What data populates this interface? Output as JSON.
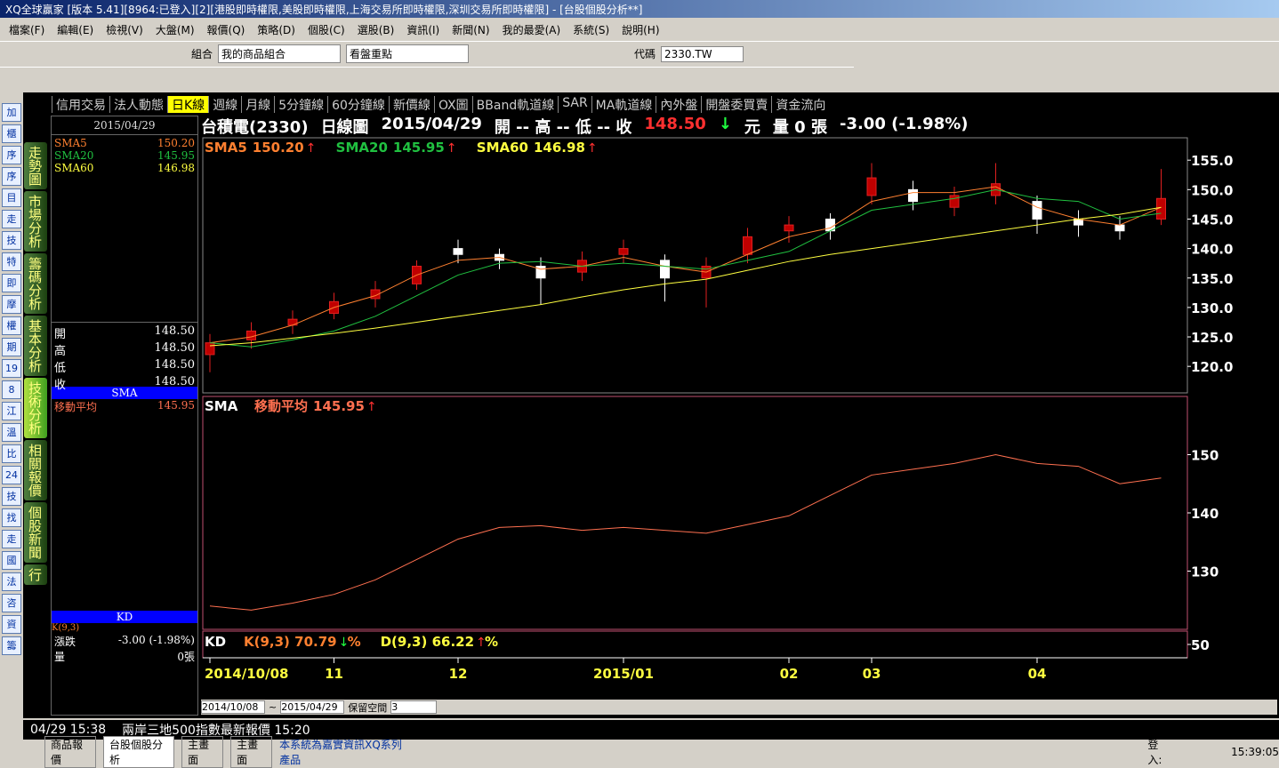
{
  "window": {
    "title": "XQ全球贏家 [版本 5.41][8964:已登入][2][港股即時權限,美股即時權限,上海交易所即時權限,深圳交易所即時權限] - [台股個股分析**]"
  },
  "menu": [
    "檔案(F)",
    "編輯(E)",
    "檢視(V)",
    "大盤(M)",
    "報價(Q)",
    "策略(D)",
    "個股(C)",
    "選股(B)",
    "資訊(I)",
    "新聞(N)",
    "我的最愛(A)",
    "系統(S)",
    "說明(H)"
  ],
  "toolbar": {
    "group_label": "組合",
    "group": "我的商品組合",
    "view": "看盤重點",
    "code_label": "代碼",
    "code": "2330.TW"
  },
  "side_icons": [
    "加",
    "櫃",
    "序",
    "序",
    "目",
    "走",
    "技",
    "特",
    "即",
    "摩",
    "權",
    "期",
    "19",
    "8",
    "江",
    "溫",
    "比",
    "24",
    "技",
    "找",
    "走",
    "國",
    "法",
    "咨",
    "資",
    "籌"
  ],
  "side_tabs": [
    "走勢圖",
    "市場分析",
    "籌碼分析",
    "基本分析",
    "技術分析",
    "相關報價",
    "個股新聞",
    "行"
  ],
  "tabs": [
    "信用交易",
    "法人動態",
    "日K線",
    "週線",
    "月線",
    "5分鐘線",
    "60分鐘線",
    "新價線",
    "OX圖",
    "BBand軌道線",
    "SAR",
    "MA軌道線",
    "內外盤",
    "開盤委買賣",
    "資金流向"
  ],
  "info": {
    "date": "2015/04/29",
    "sma_rows": [
      [
        "SMA5",
        "150.20"
      ],
      [
        "SMA20",
        "145.95"
      ],
      [
        "SMA60",
        "146.98"
      ]
    ],
    "ohlc": [
      [
        "開",
        "148.50"
      ],
      [
        "高",
        "148.50"
      ],
      [
        "低",
        "148.50"
      ],
      [
        "收",
        "148.50"
      ]
    ],
    "sma_title": "SMA",
    "sma_row": [
      "移動平均",
      "145.95"
    ],
    "kd_title": "KD",
    "kd_sub": "K(9,3)",
    "chg": [
      "漲跌",
      "-3.00 (-1.98%)"
    ],
    "vol": [
      "量",
      "0張"
    ]
  },
  "header": {
    "stock": "台積電(2330)",
    "period": "日線圖",
    "date": "2015/04/29",
    "ohlc": "開 --  高 --  低 --  收",
    "close": "148.50",
    "unit": "元",
    "volume": "量 0 張",
    "change": "-3.00 (-1.98%)"
  },
  "status": {
    "time": "04/29 15:38",
    "news": "兩岸三地500指數最新報價 15:20"
  },
  "bottom": {
    "from": "2014/10/08",
    "to": "2015/04/29",
    "label": "保留空間",
    "space": "3"
  },
  "taskbar": {
    "tabs": [
      "商品報價",
      "台股個股分析",
      "主畫面",
      "主畫面"
    ],
    "message": "本系統為嘉實資訊XQ系列產品",
    "login": "登入:",
    "clock": "15:39:05"
  },
  "chart_data": [
    {
      "type": "candlestick",
      "categories": [
        "2014/10/08",
        null,
        null,
        "11",
        null,
        null,
        "12",
        null,
        null,
        null,
        "2015/01",
        null,
        null,
        null,
        "02",
        null,
        "03",
        null,
        null,
        null,
        "04",
        null,
        null,
        null
      ],
      "open": [
        122,
        124.5,
        127,
        129,
        131.5,
        134,
        140,
        139,
        137,
        136,
        139,
        138,
        135,
        139,
        143,
        145,
        149,
        150,
        147,
        149,
        148,
        145,
        144,
        145
      ],
      "high": [
        125.5,
        127.5,
        129.5,
        132.5,
        134.5,
        138,
        141.5,
        140,
        138.5,
        139.5,
        141.5,
        139,
        138.5,
        143.5,
        145.5,
        146,
        154.5,
        151.5,
        150.5,
        154.5,
        149,
        146.5,
        145.5,
        153.5
      ],
      "low": [
        119,
        123,
        125.5,
        128,
        130,
        133,
        137.5,
        136.5,
        130.5,
        134.5,
        137.5,
        131,
        130,
        137.5,
        141,
        141.5,
        147.5,
        146.5,
        145.5,
        147.5,
        142.5,
        142,
        141.5,
        144
      ],
      "close": [
        124,
        126,
        128,
        131,
        133,
        137,
        139,
        138,
        135,
        138,
        140,
        135,
        137,
        142,
        144,
        143,
        152,
        148,
        149,
        151,
        145,
        144,
        143,
        148.5
      ],
      "series": [
        {
          "name": "SMA5",
          "latest": "150.20",
          "color": "#ff8030",
          "values": [
            124,
            125,
            127,
            130,
            132,
            135.5,
            138,
            138.5,
            136.5,
            137,
            138.5,
            137,
            136,
            139,
            142,
            143.5,
            148,
            149.5,
            149.5,
            150.5,
            147,
            145,
            144,
            147
          ]
        },
        {
          "name": "SMA20",
          "latest": "145.95",
          "color": "#20c040",
          "values": [
            124,
            123.3,
            124.5,
            126,
            128.5,
            132,
            135.5,
            137.5,
            137.8,
            137,
            137.5,
            137,
            136.5,
            138,
            139.5,
            143,
            146.5,
            147.5,
            148.5,
            150,
            148.5,
            148,
            145,
            146
          ]
        },
        {
          "name": "SMA60",
          "latest": "146.98",
          "color": "#ffff40",
          "values": [
            123.5,
            124,
            124.8,
            125.6,
            126.5,
            127.5,
            128.5,
            129.5,
            130.5,
            131.8,
            133,
            134,
            134.8,
            136.3,
            137.8,
            139,
            140,
            141,
            142,
            143,
            144,
            145,
            145.8,
            147
          ]
        }
      ],
      "ylim": [
        115.5,
        158.8
      ],
      "yticks": [
        {
          "value": 155,
          "label": "155.0"
        },
        {
          "value": 150,
          "label": "150.0"
        },
        {
          "value": 145,
          "label": "145.0"
        },
        {
          "value": 140,
          "label": "140.0"
        },
        {
          "value": 135,
          "label": "135.0"
        },
        {
          "value": 130,
          "label": "130.0"
        },
        {
          "value": 125,
          "label": "125.0"
        },
        {
          "value": 120,
          "label": "120.0"
        }
      ]
    },
    {
      "type": "line",
      "title": "SMA",
      "series": [
        {
          "name": "移動平均",
          "latest": "145.95",
          "color": "#ff7050",
          "values": [
            124,
            123.3,
            124.5,
            126,
            128.5,
            132,
            135.5,
            137.5,
            137.8,
            137,
            137.5,
            137,
            136.5,
            138,
            139.5,
            143,
            146.5,
            147.5,
            148.5,
            150,
            148.5,
            148,
            145,
            146
          ]
        }
      ],
      "ylim": [
        120,
        160
      ],
      "yticks": [
        150,
        140,
        130
      ]
    },
    {
      "type": "kd",
      "title": "KD",
      "legend": [
        {
          "text": "K(9,3) 70.79",
          "suffix": "%",
          "color": "#ff8030"
        },
        {
          "text": "D(9,3) 66.22",
          "suffix": "%",
          "color": "#ffff40"
        }
      ],
      "ylim": [
        0,
        100
      ],
      "yticks": [
        50
      ]
    }
  ]
}
